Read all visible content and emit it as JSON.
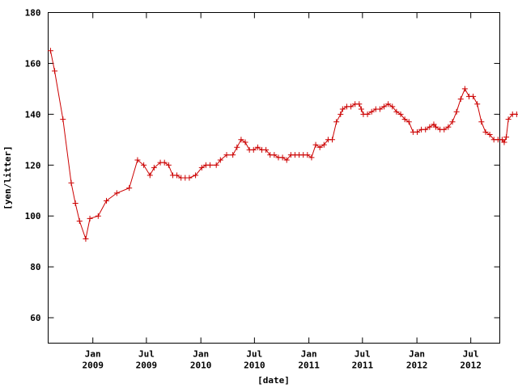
{
  "chart_data": {
    "type": "line",
    "title": "",
    "xlabel": "[date]",
    "ylabel": "[yen/litter]",
    "ylim": [
      50,
      180
    ],
    "xlim": [
      "2008-08-03",
      "2012-10-07"
    ],
    "yticks": [
      60,
      80,
      100,
      120,
      140,
      160,
      180
    ],
    "xticks": [
      {
        "date": "2009-01-01",
        "label1": "Jan",
        "label2": "2009"
      },
      {
        "date": "2009-07-01",
        "label1": "Jul",
        "label2": "2009"
      },
      {
        "date": "2010-01-01",
        "label1": "Jan",
        "label2": "2010"
      },
      {
        "date": "2010-07-01",
        "label1": "Jul",
        "label2": "2010"
      },
      {
        "date": "2011-01-01",
        "label1": "Jan",
        "label2": "2011"
      },
      {
        "date": "2011-07-01",
        "label1": "Jul",
        "label2": "2011"
      },
      {
        "date": "2012-01-01",
        "label1": "Jan",
        "label2": "2012"
      },
      {
        "date": "2012-07-01",
        "label1": "Jul",
        "label2": "2012"
      }
    ],
    "grid": false,
    "series": [
      {
        "color": "#cc0000",
        "marker": "plus",
        "points": [
          [
            "2008-08-11",
            165
          ],
          [
            "2008-08-25",
            157
          ],
          [
            "2008-09-22",
            138
          ],
          [
            "2008-10-20",
            113
          ],
          [
            "2008-11-03",
            105
          ],
          [
            "2008-11-17",
            98
          ],
          [
            "2008-12-08",
            91
          ],
          [
            "2008-12-22",
            99
          ],
          [
            "2009-01-19",
            100
          ],
          [
            "2009-02-16",
            106
          ],
          [
            "2009-03-23",
            109
          ],
          [
            "2009-05-04",
            111
          ],
          [
            "2009-06-01",
            122
          ],
          [
            "2009-06-22",
            120
          ],
          [
            "2009-07-13",
            116
          ],
          [
            "2009-07-27",
            119
          ],
          [
            "2009-08-17",
            121
          ],
          [
            "2009-08-31",
            121
          ],
          [
            "2009-09-14",
            120
          ],
          [
            "2009-09-28",
            116
          ],
          [
            "2009-10-12",
            116
          ],
          [
            "2009-10-26",
            115
          ],
          [
            "2009-11-09",
            115
          ],
          [
            "2009-11-23",
            115
          ],
          [
            "2009-12-14",
            116
          ],
          [
            "2010-01-04",
            119
          ],
          [
            "2010-01-18",
            120
          ],
          [
            "2010-02-01",
            120
          ],
          [
            "2010-02-22",
            120
          ],
          [
            "2010-03-08",
            122
          ],
          [
            "2010-03-29",
            124
          ],
          [
            "2010-04-19",
            124
          ],
          [
            "2010-05-03",
            127
          ],
          [
            "2010-05-17",
            130
          ],
          [
            "2010-05-31",
            129
          ],
          [
            "2010-06-14",
            126
          ],
          [
            "2010-06-28",
            126
          ],
          [
            "2010-07-12",
            127
          ],
          [
            "2010-07-26",
            126
          ],
          [
            "2010-08-09",
            126
          ],
          [
            "2010-08-23",
            124
          ],
          [
            "2010-09-06",
            124
          ],
          [
            "2010-09-20",
            123
          ],
          [
            "2010-10-04",
            123
          ],
          [
            "2010-10-18",
            122
          ],
          [
            "2010-11-01",
            124
          ],
          [
            "2010-11-15",
            124
          ],
          [
            "2010-11-29",
            124
          ],
          [
            "2010-12-13",
            124
          ],
          [
            "2010-12-27",
            124
          ],
          [
            "2011-01-10",
            123
          ],
          [
            "2011-01-24",
            128
          ],
          [
            "2011-02-07",
            127
          ],
          [
            "2011-02-21",
            128
          ],
          [
            "2011-03-07",
            130
          ],
          [
            "2011-03-21",
            130
          ],
          [
            "2011-04-04",
            137
          ],
          [
            "2011-04-18",
            140
          ],
          [
            "2011-04-25",
            142
          ],
          [
            "2011-05-09",
            143
          ],
          [
            "2011-05-23",
            143
          ],
          [
            "2011-06-06",
            144
          ],
          [
            "2011-06-20",
            144
          ],
          [
            "2011-06-27",
            142
          ],
          [
            "2011-07-04",
            140
          ],
          [
            "2011-07-18",
            140
          ],
          [
            "2011-08-01",
            141
          ],
          [
            "2011-08-15",
            142
          ],
          [
            "2011-08-29",
            142
          ],
          [
            "2011-09-12",
            143
          ],
          [
            "2011-09-26",
            144
          ],
          [
            "2011-10-10",
            143
          ],
          [
            "2011-10-24",
            141
          ],
          [
            "2011-11-07",
            140
          ],
          [
            "2011-11-21",
            138
          ],
          [
            "2011-12-05",
            137
          ],
          [
            "2011-12-19",
            133
          ],
          [
            "2012-01-02",
            133
          ],
          [
            "2012-01-16",
            134
          ],
          [
            "2012-01-30",
            134
          ],
          [
            "2012-02-13",
            135
          ],
          [
            "2012-02-27",
            136
          ],
          [
            "2012-03-05",
            135
          ],
          [
            "2012-03-19",
            134
          ],
          [
            "2012-04-02",
            134
          ],
          [
            "2012-04-16",
            135
          ],
          [
            "2012-04-30",
            137
          ],
          [
            "2012-05-14",
            141
          ],
          [
            "2012-05-28",
            146
          ],
          [
            "2012-06-11",
            150
          ],
          [
            "2012-06-25",
            147
          ],
          [
            "2012-07-09",
            147
          ],
          [
            "2012-07-23",
            144
          ],
          [
            "2012-08-06",
            137
          ],
          [
            "2012-08-20",
            133
          ],
          [
            "2012-09-03",
            132
          ],
          [
            "2012-09-17",
            130
          ],
          [
            "2012-10-01",
            130
          ],
          [
            "2012-10-15",
            130
          ],
          [
            "2012-10-22",
            129
          ],
          [
            "2012-10-29",
            131
          ],
          [
            "2012-11-05",
            138
          ],
          [
            "2012-11-19",
            140
          ],
          [
            "2012-12-03",
            140
          ]
        ]
      }
    ]
  }
}
